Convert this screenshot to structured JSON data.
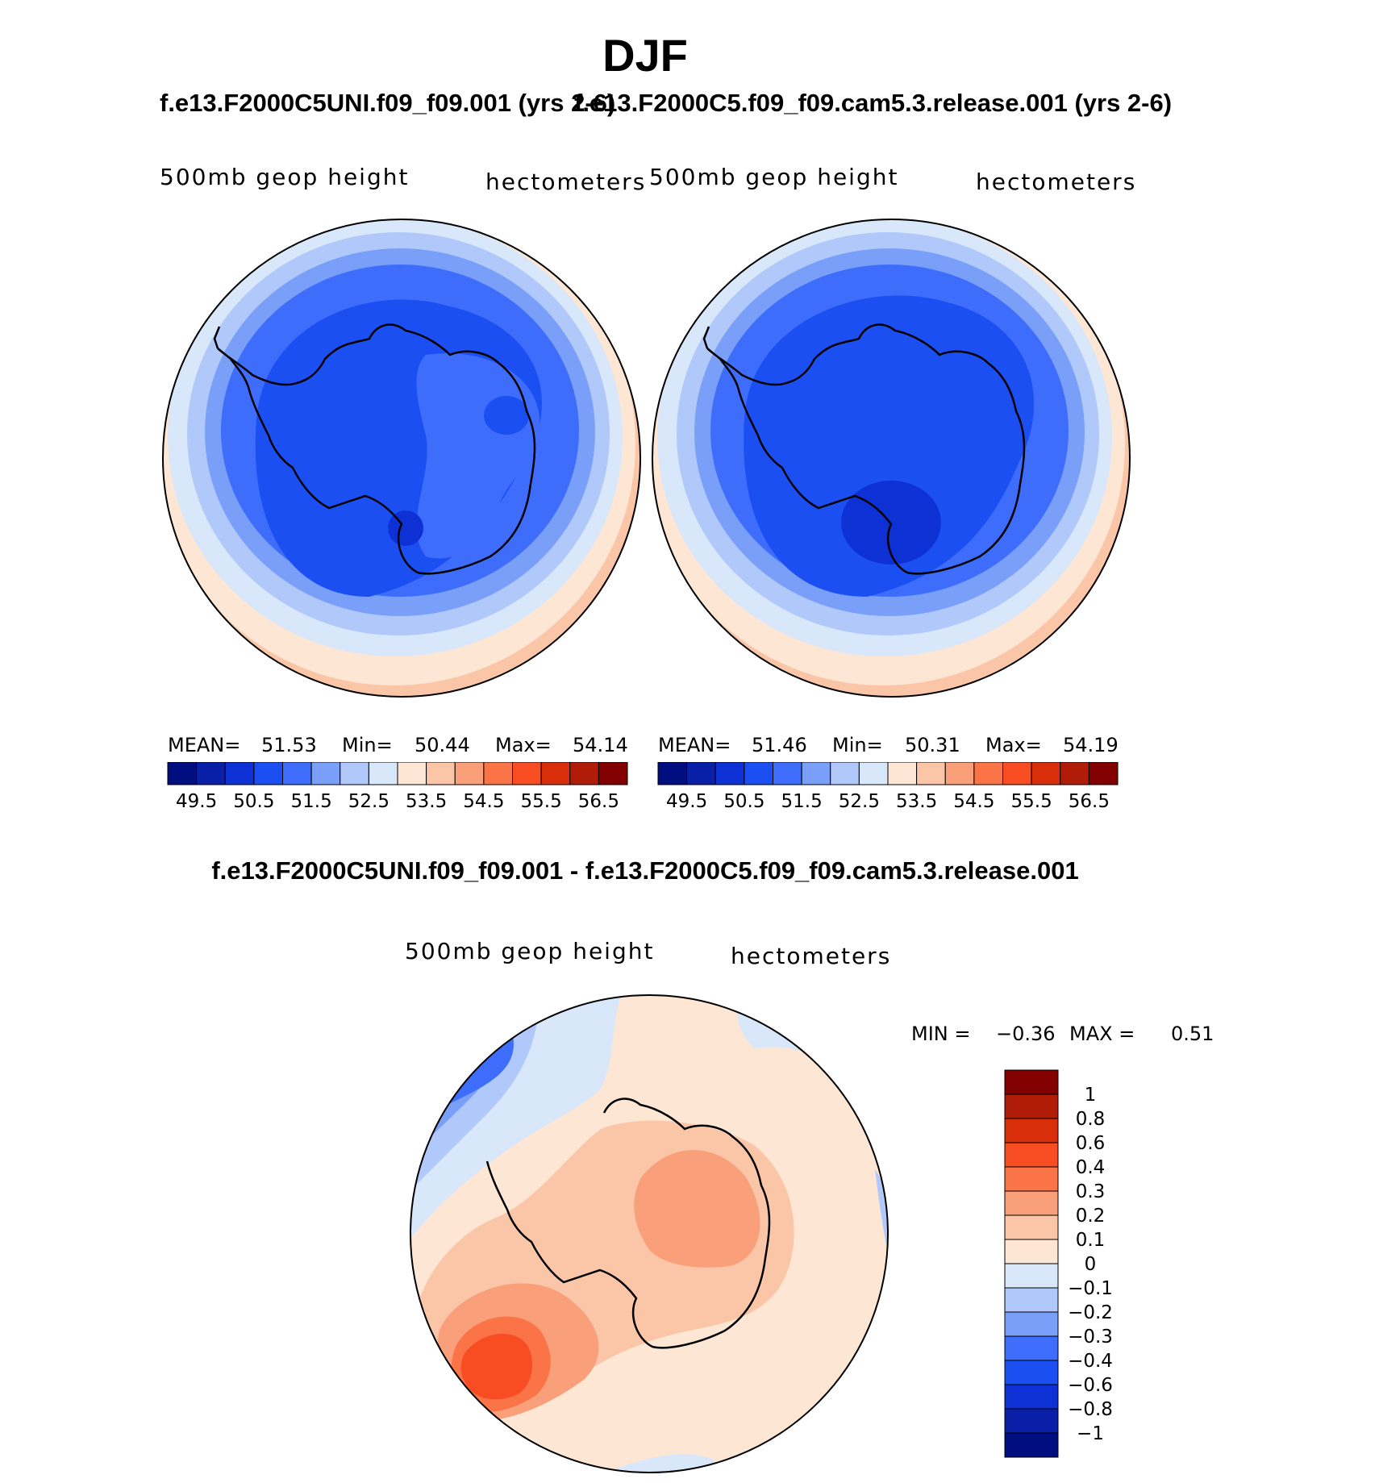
{
  "title": "DJF",
  "panels": [
    {
      "case": "f.e13.F2000C5UNI.f09_f09.001 (yrs 2-6)",
      "variable": "500mb geop height",
      "units": "hectometers",
      "stats": {
        "mean_label": "MEAN=",
        "mean": "51.53",
        "min_label": "Min=",
        "min": "50.44",
        "max_label": "Max=",
        "max": "54.14"
      }
    },
    {
      "case": "f.e13.F2000C5.f09_f09.cam5.3.release.001 (yrs 2-6)",
      "variable": "500mb geop height",
      "units": "hectometers",
      "stats": {
        "mean_label": "MEAN=",
        "mean": "51.46",
        "min_label": "Min=",
        "min": "50.31",
        "max_label": "Max=",
        "max": "54.19"
      }
    }
  ],
  "colorbar_top": {
    "colors": [
      "#000e80",
      "#0a1fa8",
      "#0d31d4",
      "#1b4ff2",
      "#3d6dfa",
      "#7a9ff8",
      "#b0c8fa",
      "#d9e7fa",
      "#fde6d4",
      "#fbc6a8",
      "#f9a07a",
      "#fb7447",
      "#f84d22",
      "#d82e0a",
      "#b01c08",
      "#820000"
    ],
    "labels": [
      "49.5",
      "50.5",
      "51.5",
      "52.5",
      "53.5",
      "54.5",
      "55.5",
      "56.5"
    ]
  },
  "difference": {
    "title": "f.e13.F2000C5UNI.f09_f09.001 - f.e13.F2000C5.f09_f09.cam5.3.release.001",
    "variable": "500mb geop height",
    "units": "hectometers",
    "min_label": "MIN =",
    "min": "−0.36",
    "max_label": "MAX =",
    "max": "0.51",
    "colors": [
      "#820000",
      "#b01c08",
      "#d82e0a",
      "#f84d22",
      "#fb7447",
      "#f9a07a",
      "#fbc6a8",
      "#fde6d4",
      "#d9e7fa",
      "#b0c8fa",
      "#7a9ff8",
      "#3d6dfa",
      "#1b4ff2",
      "#0d31d4",
      "#0a1fa8",
      "#000e80"
    ],
    "labels": [
      "1",
      "0.8",
      "0.6",
      "0.4",
      "0.3",
      "0.2",
      "0.1",
      "0",
      "−0.1",
      "−0.2",
      "−0.3",
      "−0.4",
      "−0.6",
      "−0.8",
      "−1"
    ]
  }
}
